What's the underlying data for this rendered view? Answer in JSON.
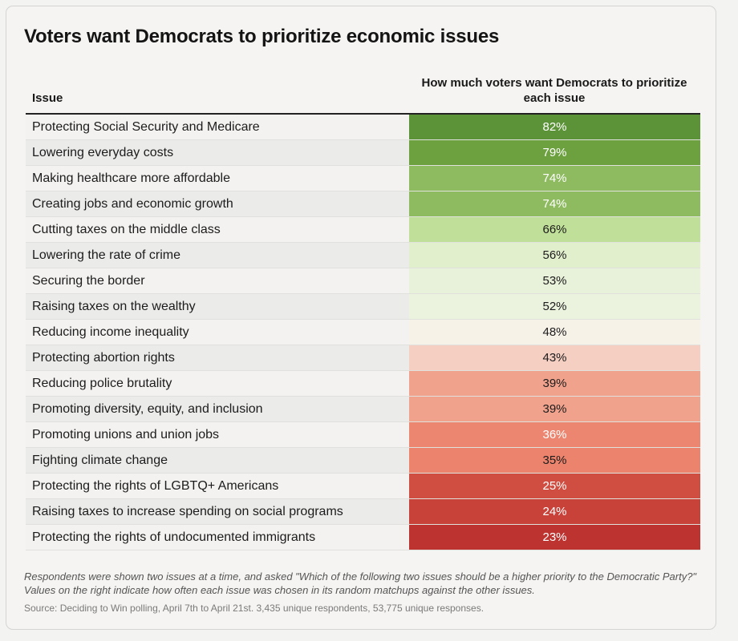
{
  "chart_data": {
    "type": "table",
    "title": "Voters want Democrats to prioritize economic issues",
    "column_headers": {
      "issue": "Issue",
      "value": "How much voters want Democrats to prioritize each issue"
    },
    "rows": [
      {
        "issue": "Protecting Social Security and Medicare",
        "value": 82,
        "label": "82%",
        "color": "#5d9338",
        "text_color": "#ffffff"
      },
      {
        "issue": "Lowering everyday costs",
        "value": 79,
        "label": "79%",
        "color": "#6da140",
        "text_color": "#ffffff"
      },
      {
        "issue": "Making healthcare more affordable",
        "value": 74,
        "label": "74%",
        "color": "#8ebb60",
        "text_color": "#ffffff"
      },
      {
        "issue": "Creating jobs and economic growth",
        "value": 74,
        "label": "74%",
        "color": "#8ebb60",
        "text_color": "#ffffff"
      },
      {
        "issue": "Cutting taxes on the middle class",
        "value": 66,
        "label": "66%",
        "color": "#c0df98",
        "text_color": "#1c1c1c"
      },
      {
        "issue": "Lowering the rate of crime",
        "value": 56,
        "label": "56%",
        "color": "#e2efcd",
        "text_color": "#1c1c1c"
      },
      {
        "issue": "Securing the border",
        "value": 53,
        "label": "53%",
        "color": "#e8f1d9",
        "text_color": "#1c1c1c"
      },
      {
        "issue": "Raising taxes on the wealthy",
        "value": 52,
        "label": "52%",
        "color": "#ebf2de",
        "text_color": "#1c1c1c"
      },
      {
        "issue": "Reducing income inequality",
        "value": 48,
        "label": "48%",
        "color": "#f7f2e8",
        "text_color": "#1c1c1c"
      },
      {
        "issue": "Protecting abortion rights",
        "value": 43,
        "label": "43%",
        "color": "#f6cfc3",
        "text_color": "#1c1c1c"
      },
      {
        "issue": "Reducing police brutality",
        "value": 39,
        "label": "39%",
        "color": "#f1a28c",
        "text_color": "#1c1c1c"
      },
      {
        "issue": "Promoting diversity, equity, and inclusion",
        "value": 39,
        "label": "39%",
        "color": "#f1a28c",
        "text_color": "#1c1c1c"
      },
      {
        "issue": "Promoting unions and union jobs",
        "value": 36,
        "label": "36%",
        "color": "#ec8670",
        "text_color": "#ffffff"
      },
      {
        "issue": "Fighting climate change",
        "value": 35,
        "label": "35%",
        "color": "#ec836c",
        "text_color": "#1c1c1c"
      },
      {
        "issue": "Protecting the rights of LGBTQ+ Americans",
        "value": 25,
        "label": "25%",
        "color": "#cf4e41",
        "text_color": "#ffffff"
      },
      {
        "issue": "Raising taxes to increase spending on social programs",
        "value": 24,
        "label": "24%",
        "color": "#c8423a",
        "text_color": "#ffffff"
      },
      {
        "issue": "Protecting the rights of undocumented immigrants",
        "value": 23,
        "label": "23%",
        "color": "#bd3330",
        "text_color": "#ffffff"
      }
    ]
  },
  "footnote": "Respondents were shown two issues at a time, and asked \"Which of the following two issues should be a higher priority to the Democratic Party?\" Values on the right indicate how often each issue was chosen in its random matchups against the other issues.",
  "source": "Source: Deciding to Win polling, April 7th to April 21st. 3,435 unique respondents, 53,775 unique responses."
}
